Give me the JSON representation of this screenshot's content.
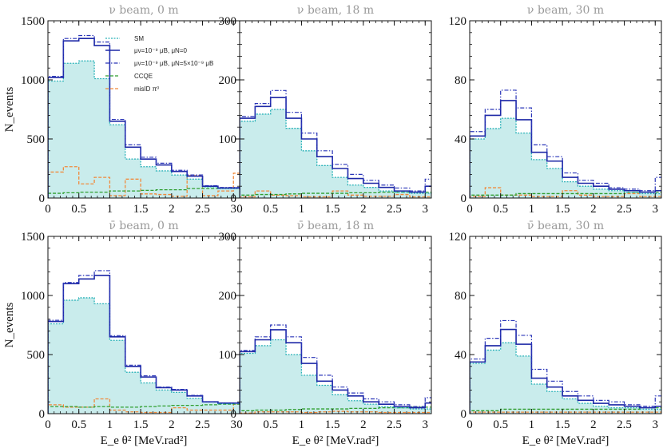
{
  "figure": {
    "xlabel": "E_e θ² [MeV.rad²]",
    "ylabel": "N_events"
  },
  "colors": {
    "fill": "#c9ecec",
    "sm": "#2ab2b8",
    "mu_nu": "#1d28a6",
    "mu_both": "#2a35b8",
    "ccqe": "#2f9e2f",
    "misid": "#f08a3c"
  },
  "legend": {
    "placement": "top-right of first panel",
    "entries": [
      "SM",
      "μν=10⁻⁹ μB, μN=0",
      "μν=10⁻⁹ μB, μN=5×10⁻⁹ μB",
      "CCQE",
      "misID π⁰"
    ]
  },
  "chart_data": [
    {
      "type": "histogram",
      "title": "ν beam, 0 m",
      "bin_edges": [
        0,
        0.25,
        0.5,
        0.75,
        1.0,
        1.25,
        1.5,
        1.75,
        2.0,
        2.25,
        2.5,
        2.75,
        3.0,
        3.1
      ],
      "xticks": [
        "0",
        "0.5",
        "1",
        "1.5",
        "2",
        "2.5",
        "3"
      ],
      "xtick_values": [
        0,
        0.5,
        1,
        1.5,
        2,
        2.5,
        3
      ],
      "ylim": [
        0,
        1500
      ],
      "yticks": [
        0,
        500,
        1000,
        1500
      ],
      "series": [
        {
          "name": "SM",
          "values": [
            990,
            1140,
            1160,
            1010,
            620,
            330,
            265,
            230,
            195,
            160,
            95,
            80,
            80
          ]
        },
        {
          "name": "μν=10⁻⁹ μB, μN=0",
          "values": [
            1020,
            1330,
            1350,
            1290,
            650,
            430,
            330,
            280,
            225,
            185,
            100,
            85,
            85
          ]
        },
        {
          "name": "μν=10⁻⁹ μB, μN=5×10⁻⁹ μB",
          "values": [
            1030,
            1350,
            1375,
            1320,
            665,
            450,
            345,
            295,
            235,
            195,
            105,
            90,
            90
          ]
        },
        {
          "name": "CCQE",
          "values": [
            40,
            45,
            50,
            50,
            60,
            60,
            65,
            70,
            70,
            80,
            80,
            85,
            85
          ]
        },
        {
          "name": "misID π⁰",
          "values": [
            220,
            265,
            120,
            175,
            20,
            160,
            35,
            30,
            15,
            190,
            20,
            60,
            210
          ]
        }
      ]
    },
    {
      "type": "histogram",
      "title": "ν beam, 18 m",
      "bin_edges": [
        0,
        0.25,
        0.5,
        0.75,
        1.0,
        1.25,
        1.5,
        1.75,
        2.0,
        2.25,
        2.5,
        2.75,
        3.0,
        3.1
      ],
      "xticks": [
        "0",
        "0.5",
        "1",
        "1.5",
        "2",
        "2.5",
        "3"
      ],
      "xtick_values": [
        0,
        0.5,
        1,
        1.5,
        2,
        2.5,
        3
      ],
      "ylim": [
        0,
        300
      ],
      "yticks": [
        0,
        100,
        200,
        300
      ],
      "series": [
        {
          "name": "SM",
          "values": [
            130,
            142,
            150,
            118,
            80,
            55,
            35,
            22,
            18,
            12,
            10,
            8,
            8
          ]
        },
        {
          "name": "μν=10⁻⁹ μB, μN=0",
          "values": [
            135,
            155,
            170,
            135,
            100,
            70,
            50,
            33,
            25,
            18,
            12,
            10,
            20
          ]
        },
        {
          "name": "μν=10⁻⁹ μB, μN=5×10⁻⁹ μB",
          "values": [
            138,
            160,
            182,
            145,
            110,
            80,
            57,
            40,
            30,
            22,
            17,
            12,
            32
          ]
        },
        {
          "name": "CCQE",
          "values": [
            5,
            6,
            6,
            7,
            8,
            8,
            8,
            9,
            9,
            10,
            10,
            10,
            10
          ]
        },
        {
          "name": "misID π⁰",
          "values": [
            2,
            12,
            5,
            4,
            2,
            2,
            12,
            5,
            3,
            3,
            6,
            2,
            2
          ]
        }
      ]
    },
    {
      "type": "histogram",
      "title": "ν beam, 30 m",
      "bin_edges": [
        0,
        0.25,
        0.5,
        0.75,
        1.0,
        1.25,
        1.5,
        1.75,
        2.0,
        2.25,
        2.5,
        2.75,
        3.0,
        3.1
      ],
      "xticks": [
        "0",
        "0.5",
        "1",
        "1.5",
        "2",
        "2.5",
        "3"
      ],
      "xtick_values": [
        0,
        0.5,
        1,
        1.5,
        2,
        2.5,
        3
      ],
      "ylim": [
        0,
        120
      ],
      "yticks": [
        0,
        40,
        80,
        120
      ],
      "series": [
        {
          "name": "SM",
          "values": [
            40,
            47,
            54,
            44,
            26,
            20,
            11,
            8,
            6,
            5,
            4,
            3,
            3
          ]
        },
        {
          "name": "μν=10⁻⁹ μB, μN=0",
          "values": [
            42,
            56,
            66,
            53,
            31,
            25,
            14,
            10,
            8,
            6,
            5,
            4,
            5
          ]
        },
        {
          "name": "μν=10⁻⁹ μB, μN=5×10⁻⁹ μB",
          "values": [
            45,
            60,
            73,
            61,
            36,
            28,
            17,
            12,
            10,
            7,
            6,
            5,
            14
          ]
        },
        {
          "name": "CCQE",
          "values": [
            2,
            2,
            2,
            3,
            3,
            3,
            3,
            3,
            3,
            3,
            4,
            4,
            4
          ]
        },
        {
          "name": "misID π⁰",
          "values": [
            1,
            7,
            2,
            2,
            1,
            1,
            5,
            2,
            1,
            1,
            3,
            1,
            1
          ]
        }
      ]
    },
    {
      "type": "histogram",
      "title": "ν̄ beam, 0 m",
      "bin_edges": [
        0,
        0.25,
        0.5,
        0.75,
        1.0,
        1.25,
        1.5,
        1.75,
        2.0,
        2.25,
        2.5,
        2.75,
        3.0,
        3.1
      ],
      "xticks": [
        "0",
        "0.5",
        "1",
        "1.5",
        "2",
        "2.5",
        "3"
      ],
      "xtick_values": [
        0,
        0.5,
        1,
        1.5,
        2,
        2.5,
        3
      ],
      "ylim": [
        0,
        1500
      ],
      "yticks": [
        0,
        500,
        1000,
        1500
      ],
      "series": [
        {
          "name": "SM",
          "values": [
            760,
            960,
            980,
            930,
            620,
            350,
            260,
            200,
            180,
            130,
            100,
            85,
            85
          ]
        },
        {
          "name": "μν=10⁻⁹ μB, μN=0",
          "values": [
            780,
            1100,
            1140,
            1170,
            650,
            400,
            310,
            220,
            200,
            150,
            100,
            90,
            90
          ]
        },
        {
          "name": "μν=10⁻⁹ μB, μN=5×10⁻⁹ μB",
          "values": [
            790,
            1110,
            1170,
            1210,
            660,
            410,
            320,
            225,
            205,
            155,
            100,
            90,
            90
          ]
        },
        {
          "name": "CCQE",
          "values": [
            60,
            60,
            55,
            60,
            55,
            55,
            60,
            65,
            70,
            70,
            75,
            80,
            80
          ]
        },
        {
          "name": "misID π⁰",
          "values": [
            75,
            55,
            55,
            125,
            30,
            15,
            10,
            10,
            50,
            30,
            30,
            30,
            80
          ]
        }
      ]
    },
    {
      "type": "histogram",
      "title": "ν̄ beam, 18 m",
      "bin_edges": [
        0,
        0.25,
        0.5,
        0.75,
        1.0,
        1.25,
        1.5,
        1.75,
        2.0,
        2.25,
        2.5,
        2.75,
        3.0,
        3.1
      ],
      "xticks": [
        "0",
        "0.5",
        "1",
        "1.5",
        "2",
        "2.5",
        "3"
      ],
      "xtick_values": [
        0,
        0.5,
        1,
        1.5,
        2,
        2.5,
        3
      ],
      "ylim": [
        0,
        300
      ],
      "yticks": [
        0,
        100,
        200,
        300
      ],
      "series": [
        {
          "name": "SM",
          "values": [
            102,
            115,
            125,
            100,
            65,
            48,
            32,
            22,
            16,
            12,
            10,
            8,
            8
          ]
        },
        {
          "name": "μν=10⁻⁹ μB, μN=0",
          "values": [
            105,
            125,
            142,
            120,
            85,
            55,
            40,
            30,
            20,
            16,
            12,
            10,
            18
          ]
        },
        {
          "name": "μν=10⁻⁹ μB, μN=5×10⁻⁹ μB",
          "values": [
            107,
            130,
            150,
            130,
            95,
            65,
            45,
            35,
            25,
            20,
            15,
            12,
            27
          ]
        },
        {
          "name": "CCQE",
          "values": [
            5,
            6,
            6,
            7,
            8,
            8,
            8,
            9,
            9,
            10,
            10,
            11,
            11
          ]
        },
        {
          "name": "misID π⁰",
          "values": [
            1,
            3,
            3,
            3,
            2,
            3,
            4,
            3,
            3,
            2,
            2,
            2,
            2
          ]
        }
      ]
    },
    {
      "type": "histogram",
      "title": "ν̄ beam, 30 m",
      "bin_edges": [
        0,
        0.25,
        0.5,
        0.75,
        1.0,
        1.25,
        1.5,
        1.75,
        2.0,
        2.25,
        2.5,
        2.75,
        3.0,
        3.1
      ],
      "xticks": [
        "0",
        "0.5",
        "1",
        "1.5",
        "2",
        "2.5",
        "3"
      ],
      "xtick_values": [
        0,
        0.5,
        1,
        1.5,
        2,
        2.5,
        3
      ],
      "ylim": [
        0,
        120
      ],
      "yticks": [
        0,
        40,
        80,
        120
      ],
      "series": [
        {
          "name": "SM",
          "values": [
            34,
            43,
            48,
            39,
            20,
            15,
            10,
            7,
            5,
            4,
            4,
            3,
            3
          ]
        },
        {
          "name": "μν=10⁻⁹ μB, μN=0",
          "values": [
            35,
            46,
            57,
            47,
            24,
            18,
            12,
            9,
            7,
            6,
            5,
            4,
            5
          ]
        },
        {
          "name": "μν=10⁻⁹ μB, μN=5×10⁻⁹ μB",
          "values": [
            37,
            51,
            63,
            53,
            30,
            22,
            15,
            12,
            9,
            8,
            6,
            5,
            12
          ]
        },
        {
          "name": "CCQE",
          "values": [
            2,
            2,
            3,
            3,
            3,
            3,
            3,
            3,
            3,
            3,
            3,
            4,
            4
          ]
        },
        {
          "name": "misID π⁰",
          "values": [
            1,
            1,
            1,
            1,
            1,
            1,
            1,
            1,
            1,
            1,
            1,
            1,
            1
          ]
        }
      ]
    }
  ]
}
